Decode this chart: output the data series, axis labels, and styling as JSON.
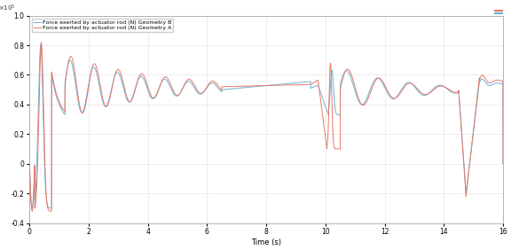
{
  "xlabel": "Time (s)",
  "xlim": [
    0,
    16
  ],
  "ylim": [
    -0.4,
    1.0
  ],
  "yticks": [
    -0.4,
    -0.2,
    0.0,
    0.2,
    0.4,
    0.6,
    0.8,
    1.0
  ],
  "xticks": [
    0,
    2,
    4,
    6,
    8,
    10,
    12,
    14,
    16
  ],
  "legend_A": "Force exerted by actuator rod (N) Geometry A",
  "legend_B": "Force exerted by actuator rod (N) Geometry B",
  "color_A": "#e8786a",
  "color_B": "#6ab4d2",
  "background": "#ffffff",
  "grid_color": "#e0e0e0",
  "lw": 0.7
}
